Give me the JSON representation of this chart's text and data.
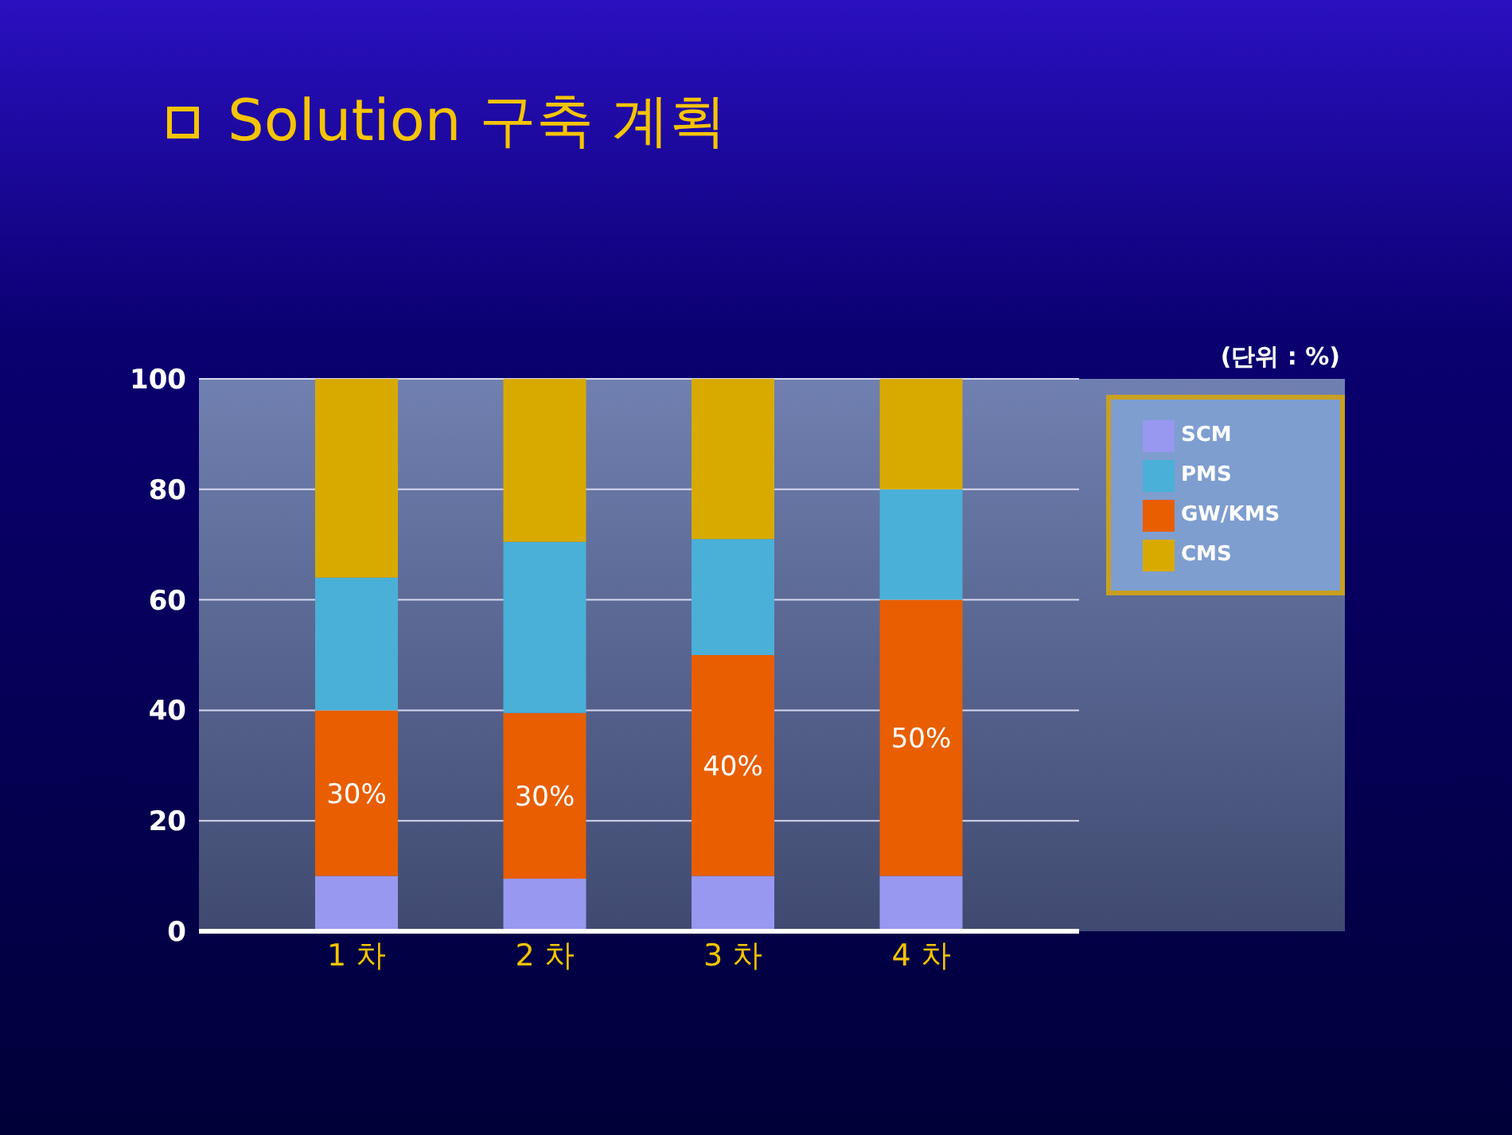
{
  "chart_data": {
    "type": "bar",
    "title": "Solution 구축 계획",
    "annotations": [
      "(단위 : %)"
    ],
    "categories": [
      "1 차",
      "2 차",
      "3 차",
      "4 차"
    ],
    "stacked": true,
    "ylim": [
      0,
      100
    ],
    "yticks": [
      0,
      20,
      40,
      60,
      80,
      100
    ],
    "grid": "y",
    "legend": "right",
    "series": [
      {
        "name": "SCM",
        "color": "#9898f0",
        "values": [
          10,
          9.5,
          10,
          10
        ]
      },
      {
        "name": "GW/KMS",
        "color": "#e85e00",
        "values": [
          30,
          30,
          40,
          50
        ],
        "value_labels": [
          "30%",
          "30%",
          "40%",
          "50%"
        ]
      },
      {
        "name": "PMS",
        "color": "#4ab0d8",
        "values": [
          24,
          31,
          21,
          20
        ]
      },
      {
        "name": "CMS",
        "color": "#d8aa00",
        "values": [
          36,
          29.5,
          29,
          20
        ]
      }
    ]
  }
}
